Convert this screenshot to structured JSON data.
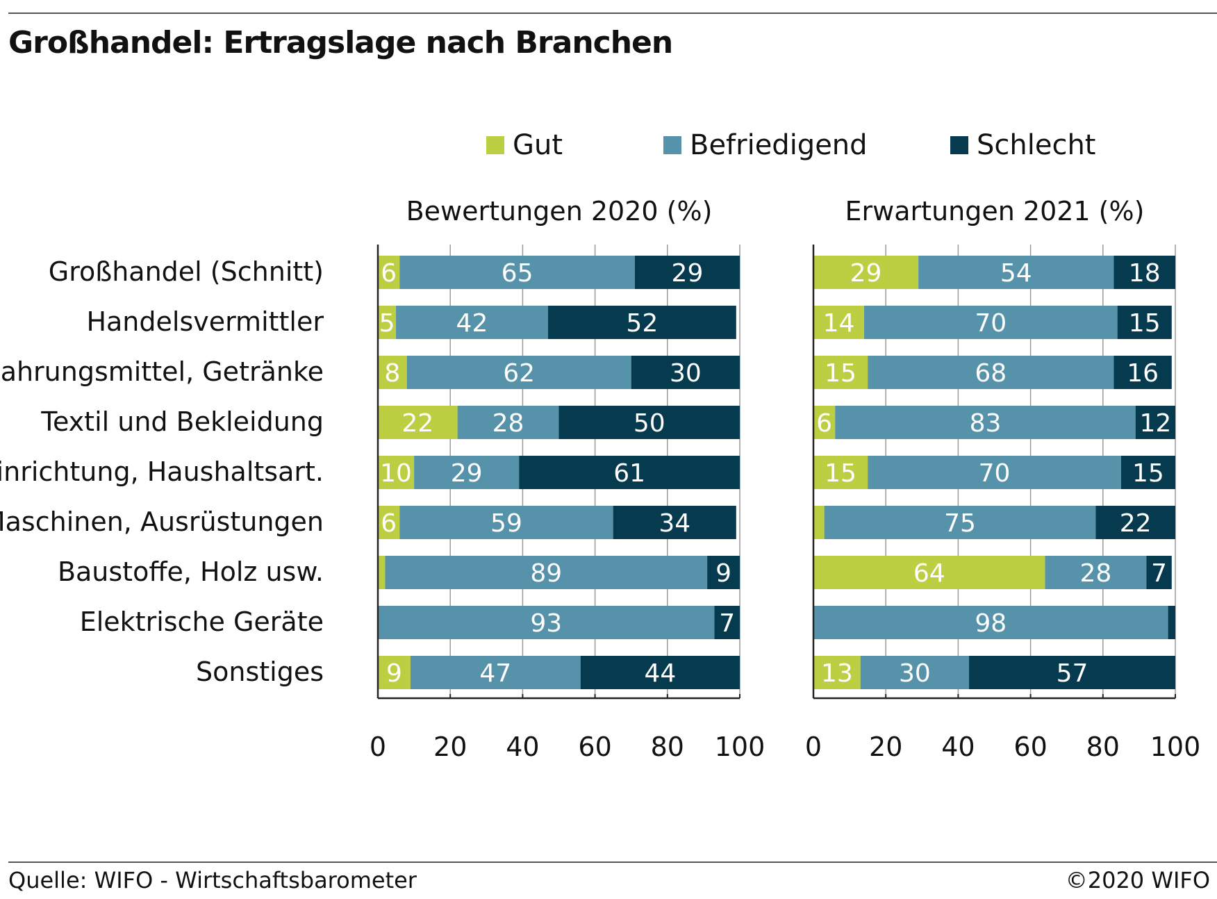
{
  "title": "Großhandel: Ertragslage nach Branchen",
  "source": "Quelle: WIFO - Wirtschaftsbarometer",
  "copyright": "©2020 WIFO",
  "legend": [
    {
      "name": "Gut",
      "color": "#bccf42"
    },
    {
      "name": "Befriedigend",
      "color": "#5693aa"
    },
    {
      "name": "Schlecht",
      "color": "#063a4f"
    }
  ],
  "categories": [
    "Großhandel (Schnitt)",
    "Handelsvermittler",
    "Nahrungsmittel, Getränke",
    "Textil und Bekleidung",
    "Einrichtung, Haushaltsart.",
    "Maschinen, Ausrüstungen",
    "Baustoffe, Holz usw.",
    "Elektrische Geräte",
    "Sonstiges"
  ],
  "chart_data": [
    {
      "type": "bar",
      "stacked": true,
      "orientation": "horizontal",
      "title": "Bewertungen 2020 (%)",
      "xlim": [
        0,
        100
      ],
      "xticks": [
        0,
        20,
        40,
        60,
        80,
        100
      ],
      "categories": [
        "Großhandel (Schnitt)",
        "Handelsvermittler",
        "Nahrungsmittel, Getränke",
        "Textil und Bekleidung",
        "Einrichtung, Haushaltsart.",
        "Maschinen, Ausrüstungen",
        "Baustoffe, Holz usw.",
        "Elektrische Geräte",
        "Sonstiges"
      ],
      "series": [
        {
          "name": "Gut",
          "values": [
            6,
            5,
            8,
            22,
            10,
            6,
            2,
            0,
            9
          ],
          "labels": [
            "6",
            "5",
            "8",
            "22",
            "10",
            "6",
            "",
            "",
            "9"
          ]
        },
        {
          "name": "Befriedigend",
          "values": [
            65,
            42,
            62,
            28,
            29,
            59,
            89,
            93,
            47
          ],
          "labels": [
            "65",
            "42",
            "62",
            "28",
            "29",
            "59",
            "89",
            "93",
            "47"
          ]
        },
        {
          "name": "Schlecht",
          "values": [
            29,
            52,
            30,
            50,
            61,
            34,
            9,
            7,
            44
          ],
          "labels": [
            "29",
            "52",
            "30",
            "50",
            "61",
            "34",
            "9",
            "7",
            "44"
          ]
        }
      ]
    },
    {
      "type": "bar",
      "stacked": true,
      "orientation": "horizontal",
      "title": "Erwartungen 2021 (%)",
      "xlim": [
        0,
        100
      ],
      "xticks": [
        0,
        20,
        40,
        60,
        80,
        100
      ],
      "categories": [
        "Großhandel (Schnitt)",
        "Handelsvermittler",
        "Nahrungsmittel, Getränke",
        "Textil und Bekleidung",
        "Einrichtung, Haushaltsart.",
        "Maschinen, Ausrüstungen",
        "Baustoffe, Holz usw.",
        "Elektrische Geräte",
        "Sonstiges"
      ],
      "series": [
        {
          "name": "Gut",
          "values": [
            29,
            14,
            15,
            6,
            15,
            3,
            64,
            0,
            13
          ],
          "labels": [
            "29",
            "14",
            "15",
            "6",
            "15",
            "",
            "64",
            "",
            "13"
          ]
        },
        {
          "name": "Befriedigend",
          "values": [
            54,
            70,
            68,
            83,
            70,
            75,
            28,
            98,
            30
          ],
          "labels": [
            "54",
            "70",
            "68",
            "83",
            "70",
            "75",
            "28",
            "98",
            "30"
          ]
        },
        {
          "name": "Schlecht",
          "values": [
            18,
            15,
            16,
            12,
            15,
            22,
            7,
            2,
            57
          ],
          "labels": [
            "18",
            "15",
            "16",
            "12",
            "15",
            "22",
            "7",
            "",
            "57"
          ]
        }
      ]
    }
  ]
}
